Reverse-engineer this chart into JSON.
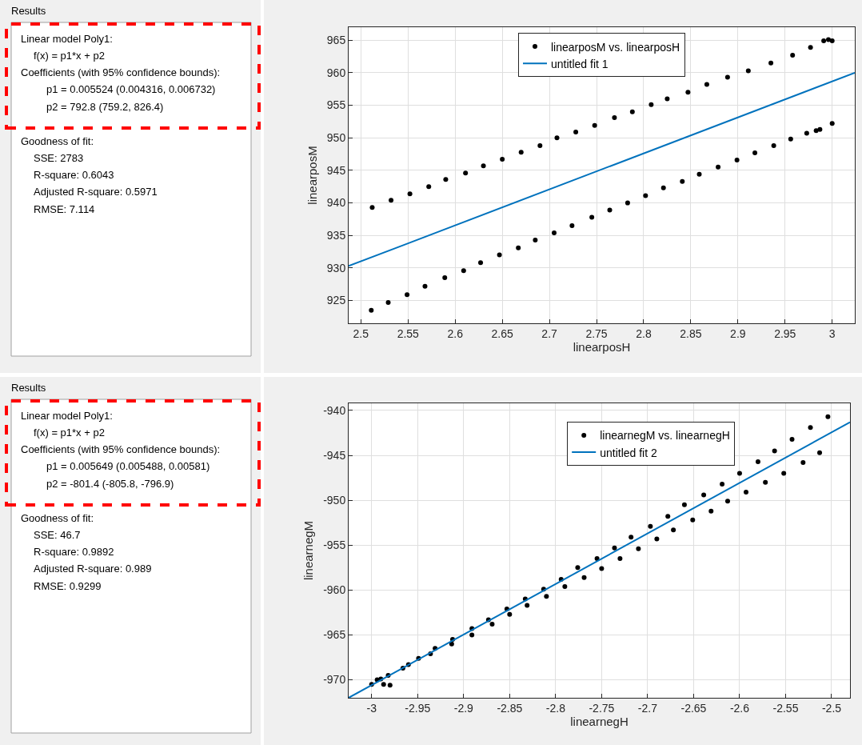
{
  "chart_data": [
    {
      "type": "other",
      "title": "Results",
      "annotations": [
        "Linear model Poly1:",
        "f(x) = p1*x + p2",
        "Coefficients (with 95% confidence bounds):",
        "p1 = 0.005524 (0.004316, 0.006732)",
        "p2 = 792.8 (759.2, 826.4)",
        "Goodness of fit:",
        "SSE: 2783",
        "R-square: 0.6043",
        "Adjusted R-square: 0.5971",
        "RMSE: 7.114"
      ]
    },
    {
      "type": "scatter",
      "xlabel": "linearposH",
      "ylabel": "linearposM",
      "xlim": [
        2.487,
        3.024
      ],
      "ylim": [
        921.5,
        967.0
      ],
      "xticks": [
        2.5,
        2.55,
        2.6,
        2.65,
        2.7,
        2.75,
        2.8,
        2.85,
        2.9,
        2.95,
        3
      ],
      "yticks": [
        925,
        930,
        935,
        940,
        945,
        950,
        955,
        960,
        965
      ],
      "grid": true,
      "legend": "top",
      "marker": "circle",
      "series": [
        {
          "name": "linearposM vs. linearposH",
          "type": "scatter",
          "color": "#000000",
          "x": [
            2.512,
            2.532,
            2.552,
            2.572,
            2.59,
            2.611,
            2.63,
            2.65,
            2.67,
            2.69,
            2.708,
            2.728,
            2.748,
            2.769,
            2.788,
            2.808,
            2.825,
            2.847,
            2.867,
            2.889,
            2.911,
            2.935,
            2.958,
            2.977,
            2.991,
            2.996,
            3.0,
            2.511,
            2.529,
            2.549,
            2.568,
            2.589,
            2.609,
            2.627,
            2.647,
            2.667,
            2.685,
            2.705,
            2.724,
            2.745,
            2.764,
            2.783,
            2.802,
            2.821,
            2.841,
            2.859,
            2.879,
            2.899,
            2.918,
            2.938,
            2.956,
            2.973,
            2.983,
            2.987,
            3.0
          ],
          "values": [
            939.3,
            940.4,
            941.4,
            942.5,
            943.6,
            944.6,
            945.7,
            946.7,
            947.8,
            948.8,
            950.0,
            950.9,
            951.9,
            953.1,
            954.0,
            955.1,
            956.0,
            957.0,
            958.2,
            959.3,
            960.3,
            961.5,
            962.7,
            963.9,
            964.9,
            965.1,
            964.9,
            923.5,
            924.7,
            925.9,
            927.2,
            928.5,
            929.6,
            930.8,
            932.0,
            933.1,
            934.3,
            935.4,
            936.5,
            937.8,
            938.9,
            940.0,
            941.1,
            942.3,
            943.3,
            944.4,
            945.5,
            946.6,
            947.7,
            948.8,
            949.8,
            950.7,
            951.1,
            951.3,
            952.2
          ]
        },
        {
          "name": "untitled fit 1",
          "type": "line",
          "color": "#0072bd",
          "marker": "none",
          "x": [
            2.487,
            3.024
          ],
          "values": [
            930.3,
            960.0
          ]
        }
      ]
    },
    {
      "type": "other",
      "title": "Results",
      "annotations": [
        "Linear model Poly1:",
        "f(x) = p1*x + p2",
        "Coefficients (with 95% confidence bounds):",
        "p1 = 0.005649 (0.005488, 0.00581)",
        "p2 = -801.4 (-805.8, -796.9)",
        "Goodness of fit:",
        "SSE: 46.7",
        "R-square: 0.9892",
        "Adjusted R-square: 0.989",
        "RMSE: 0.9299"
      ]
    },
    {
      "type": "scatter",
      "xlabel": "linearnegH",
      "ylabel": "linearnegM",
      "xlim": [
        -3.025,
        -2.48
      ],
      "ylim": [
        -972.0,
        -939.2
      ],
      "xticks": [
        -3,
        -2.95,
        -2.9,
        -2.85,
        -2.8,
        -2.75,
        -2.7,
        -2.65,
        -2.6,
        -2.55,
        -2.5
      ],
      "yticks": [
        -970,
        -965,
        -960,
        -955,
        -950,
        -945,
        -940
      ],
      "grid": true,
      "legend": "top",
      "marker": "circle",
      "series": [
        {
          "name": "linearnegM vs. linearnegH",
          "type": "scatter",
          "color": "#000000",
          "x": [
            -3.0,
            -2.994,
            -2.99,
            -2.987,
            -2.982,
            -2.98,
            -2.966,
            -2.96,
            -2.949,
            -2.936,
            -2.931,
            -2.912,
            -2.913,
            -2.891,
            -2.891,
            -2.873,
            -2.869,
            -2.853,
            -2.85,
            -2.833,
            -2.831,
            -2.813,
            -2.81,
            -2.794,
            -2.79,
            -2.776,
            -2.769,
            -2.755,
            -2.75,
            -2.736,
            -2.73,
            -2.718,
            -2.71,
            -2.697,
            -2.69,
            -2.678,
            -2.672,
            -2.66,
            -2.651,
            -2.639,
            -2.631,
            -2.619,
            -2.613,
            -2.6,
            -2.593,
            -2.58,
            -2.572,
            -2.562,
            -2.552,
            -2.543,
            -2.531,
            -2.523,
            -2.513,
            -2.504
          ],
          "values": [
            -970.5,
            -970.0,
            -969.9,
            -970.5,
            -969.5,
            -970.6,
            -968.7,
            -968.3,
            -967.6,
            -967.1,
            -966.5,
            -965.5,
            -966.0,
            -964.3,
            -965.0,
            -963.3,
            -963.8,
            -962.1,
            -962.7,
            -961.0,
            -961.7,
            -959.9,
            -960.7,
            -958.8,
            -959.6,
            -957.5,
            -958.6,
            -956.5,
            -957.6,
            -955.3,
            -956.5,
            -954.1,
            -955.4,
            -952.9,
            -954.3,
            -951.8,
            -953.3,
            -950.5,
            -952.2,
            -949.4,
            -951.2,
            -948.2,
            -950.1,
            -947.0,
            -949.1,
            -945.7,
            -948.0,
            -944.5,
            -947.0,
            -943.2,
            -945.8,
            -941.9,
            -944.7,
            -940.7
          ]
        },
        {
          "name": "untitled fit 2",
          "type": "line",
          "color": "#0072bd",
          "marker": "none",
          "x": [
            -3.025,
            -2.48
          ],
          "values": [
            -972.0,
            -941.3
          ]
        }
      ]
    }
  ]
}
